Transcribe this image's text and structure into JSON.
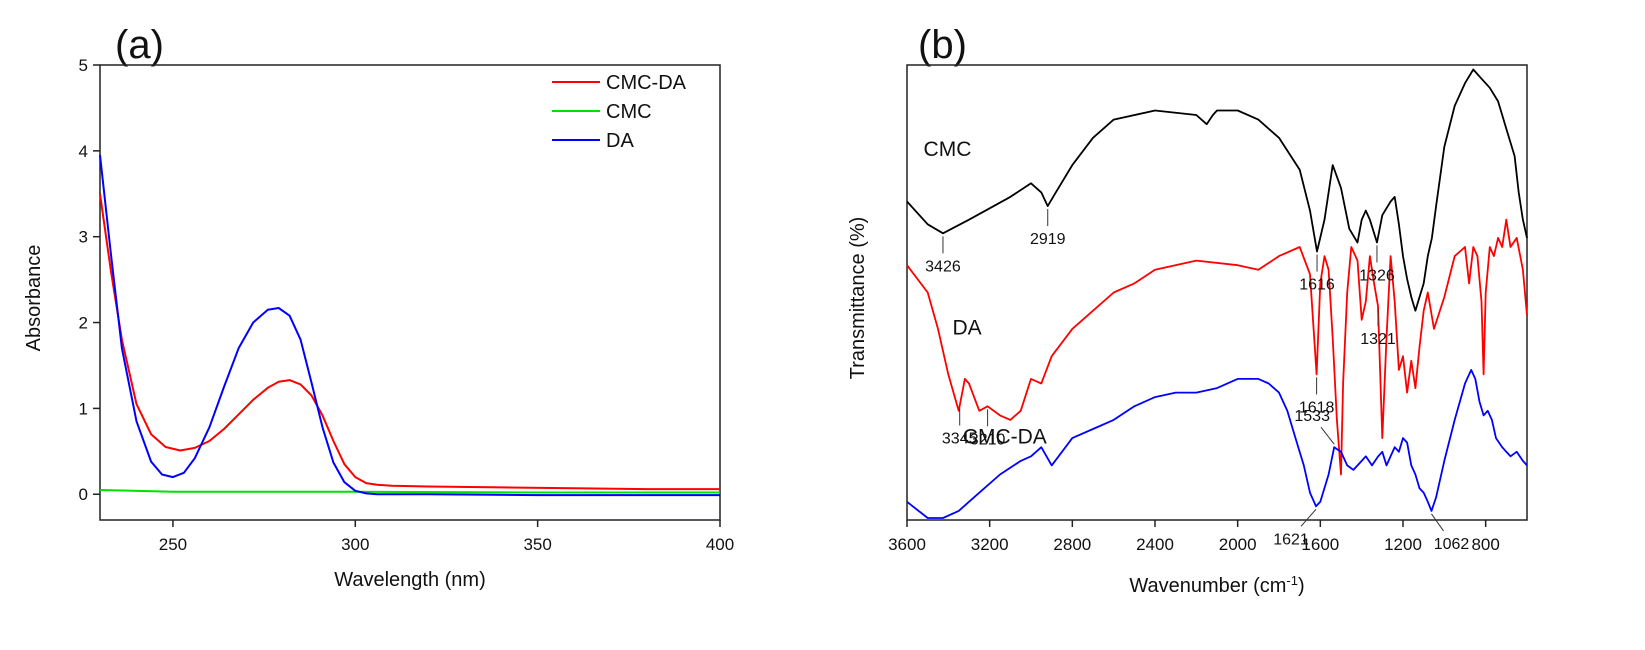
{
  "chart_data": [
    {
      "type": "line",
      "panel_label": "(a)",
      "title": "",
      "xlabel": "Wavelength (nm)",
      "ylabel": "Absorbance",
      "xlim": [
        230,
        400
      ],
      "ylim": [
        -0.3,
        5
      ],
      "xticks": [
        250,
        300,
        350,
        400
      ],
      "yticks": [
        0,
        1,
        2,
        3,
        4,
        5
      ],
      "grid": false,
      "legend_position": "top-right",
      "series": [
        {
          "name": "CMC-DA",
          "color": "#ff0000",
          "x": [
            230,
            233,
            236,
            240,
            244,
            248,
            252,
            256,
            260,
            264,
            268,
            272,
            276,
            279,
            282,
            285,
            288,
            291,
            294,
            297,
            300,
            303,
            306,
            310,
            320,
            340,
            360,
            380,
            400
          ],
          "y": [
            3.5,
            2.6,
            1.8,
            1.05,
            0.7,
            0.55,
            0.51,
            0.54,
            0.62,
            0.76,
            0.93,
            1.1,
            1.24,
            1.31,
            1.33,
            1.28,
            1.15,
            0.92,
            0.62,
            0.35,
            0.2,
            0.13,
            0.11,
            0.1,
            0.09,
            0.08,
            0.07,
            0.06,
            0.06
          ]
        },
        {
          "name": "CMC",
          "color": "#00e000",
          "x": [
            230,
            250,
            300,
            350,
            400
          ],
          "y": [
            0.05,
            0.03,
            0.03,
            0.02,
            0.02
          ]
        },
        {
          "name": "DA",
          "color": "#0000ff",
          "x": [
            230,
            233,
            236,
            240,
            244,
            247,
            250,
            253,
            256,
            260,
            264,
            268,
            272,
            276,
            279,
            282,
            285,
            288,
            291,
            294,
            297,
            300,
            303,
            306,
            310,
            320,
            350,
            400
          ],
          "y": [
            3.95,
            2.8,
            1.7,
            0.85,
            0.38,
            0.23,
            0.2,
            0.25,
            0.42,
            0.78,
            1.25,
            1.7,
            2.0,
            2.15,
            2.17,
            2.08,
            1.8,
            1.3,
            0.78,
            0.37,
            0.14,
            0.04,
            0.01,
            0.0,
            0.0,
            0.0,
            -0.01,
            -0.01
          ]
        }
      ]
    },
    {
      "type": "line",
      "panel_label": "(b)",
      "title": "",
      "xlabel_main": "Wavenumber (cm",
      "xlabel_sup": "-1",
      "xlabel_close": ")",
      "ylabel": "Transmittance (%)",
      "xlim": [
        3600,
        600
      ],
      "ylim": [
        0,
        100
      ],
      "xticks": [
        3600,
        3200,
        2800,
        2400,
        2000,
        1600,
        1200,
        800
      ],
      "grid": false,
      "series": [
        {
          "name": "CMC",
          "color": "#000000",
          "x": [
            3600,
            3500,
            3426,
            3300,
            3100,
            3000,
            2950,
            2919,
            2880,
            2800,
            2700,
            2600,
            2400,
            2200,
            2150,
            2120,
            2100,
            2000,
            1900,
            1800,
            1700,
            1650,
            1616,
            1580,
            1540,
            1500,
            1460,
            1420,
            1400,
            1380,
            1360,
            1340,
            1326,
            1300,
            1260,
            1240,
            1220,
            1200,
            1180,
            1160,
            1140,
            1120,
            1100,
            1080,
            1060,
            1040,
            1000,
            950,
            900,
            860,
            820,
            780,
            740,
            700,
            660,
            640,
            620,
            600
          ],
          "y": [
            70,
            65,
            63,
            66,
            71,
            74,
            72,
            69,
            72,
            78,
            84,
            88,
            90,
            89,
            87,
            89,
            90,
            90,
            88,
            84,
            77,
            68,
            59,
            66,
            78,
            73,
            64,
            61,
            66,
            68,
            66,
            63,
            61,
            67,
            70,
            71,
            65,
            58,
            53,
            49,
            46,
            49,
            52,
            58,
            62,
            69,
            82,
            91,
            96,
            99,
            97,
            95,
            92,
            86,
            80,
            72,
            66,
            62
          ]
        },
        {
          "name": "DA",
          "color": "#ff0000",
          "x": [
            3600,
            3500,
            3450,
            3400,
            3350,
            3320,
            3300,
            3250,
            3210,
            3150,
            3100,
            3050,
            3000,
            2950,
            2900,
            2800,
            2700,
            2600,
            2500,
            2400,
            2200,
            2000,
            1900,
            1800,
            1700,
            1650,
            1618,
            1600,
            1580,
            1560,
            1540,
            1520,
            1500,
            1490,
            1470,
            1450,
            1420,
            1400,
            1380,
            1360,
            1340,
            1321,
            1300,
            1280,
            1260,
            1240,
            1220,
            1200,
            1180,
            1160,
            1140,
            1120,
            1100,
            1080,
            1050,
            1000,
            950,
            900,
            880,
            860,
            840,
            820,
            810,
            800,
            780,
            760,
            740,
            720,
            700,
            680,
            650,
            620,
            600
          ],
          "y": [
            56,
            50,
            42,
            32,
            24,
            31,
            30,
            24,
            25,
            23,
            22,
            24,
            31,
            30,
            36,
            42,
            46,
            50,
            52,
            55,
            57,
            56,
            55,
            58,
            60,
            54,
            32,
            52,
            58,
            55,
            40,
            22,
            10,
            30,
            50,
            60,
            57,
            44,
            48,
            58,
            52,
            47,
            18,
            40,
            58,
            48,
            33,
            36,
            28,
            35,
            29,
            38,
            46,
            50,
            42,
            49,
            58,
            60,
            52,
            60,
            58,
            48,
            32,
            50,
            60,
            58,
            62,
            60,
            66,
            60,
            62,
            55,
            45
          ]
        },
        {
          "name": "CMC-DA",
          "color": "#0000ff",
          "x": [
            3600,
            3500,
            3426,
            3350,
            3250,
            3150,
            3050,
            3000,
            2950,
            2900,
            2850,
            2800,
            2700,
            2600,
            2500,
            2400,
            2300,
            2200,
            2100,
            2000,
            1950,
            1900,
            1850,
            1800,
            1760,
            1720,
            1680,
            1650,
            1621,
            1600,
            1560,
            1533,
            1500,
            1470,
            1440,
            1400,
            1380,
            1350,
            1320,
            1300,
            1280,
            1260,
            1240,
            1220,
            1200,
            1180,
            1160,
            1140,
            1120,
            1100,
            1080,
            1062,
            1040,
            1000,
            950,
            900,
            870,
            850,
            830,
            810,
            790,
            770,
            750,
            720,
            700,
            680,
            650,
            620,
            600
          ],
          "y": [
            4,
            0,
            -1,
            2,
            6,
            10,
            13,
            14,
            16,
            12,
            15,
            18,
            20,
            22,
            25,
            27,
            28,
            28,
            29,
            31,
            31,
            31,
            30,
            28,
            24,
            18,
            12,
            6,
            3,
            4,
            10,
            16,
            15,
            12,
            11,
            13,
            14,
            12,
            14,
            15,
            12,
            14,
            16,
            15,
            18,
            17,
            12,
            10,
            7,
            6,
            4,
            2,
            5,
            13,
            22,
            30,
            33,
            31,
            26,
            23,
            24,
            22,
            18,
            16,
            15,
            14,
            15,
            13,
            12
          ]
        }
      ],
      "series_labels": [
        "CMC",
        "DA",
        "CMC-DA"
      ],
      "peak_annotations": [
        {
          "label": "3426",
          "series": "CMC",
          "x": 3426
        },
        {
          "label": "2919",
          "series": "CMC",
          "x": 2919
        },
        {
          "label": "1616",
          "series": "CMC",
          "x": 1616
        },
        {
          "label": "1326",
          "series": "CMC",
          "x": 1326
        },
        {
          "label": "3345",
          "series": "DA",
          "x": 3345
        },
        {
          "label": "3210",
          "series": "DA",
          "x": 3210
        },
        {
          "label": "1618",
          "series": "DA",
          "x": 1618
        },
        {
          "label": "1321",
          "series": "DA",
          "x": 1321
        },
        {
          "label": "1533",
          "series": "CMC-DA",
          "x": 1533
        },
        {
          "label": "1621",
          "series": "CMC-DA",
          "x": 1621
        },
        {
          "label": "1062",
          "series": "CMC-DA",
          "x": 1062
        }
      ]
    }
  ]
}
